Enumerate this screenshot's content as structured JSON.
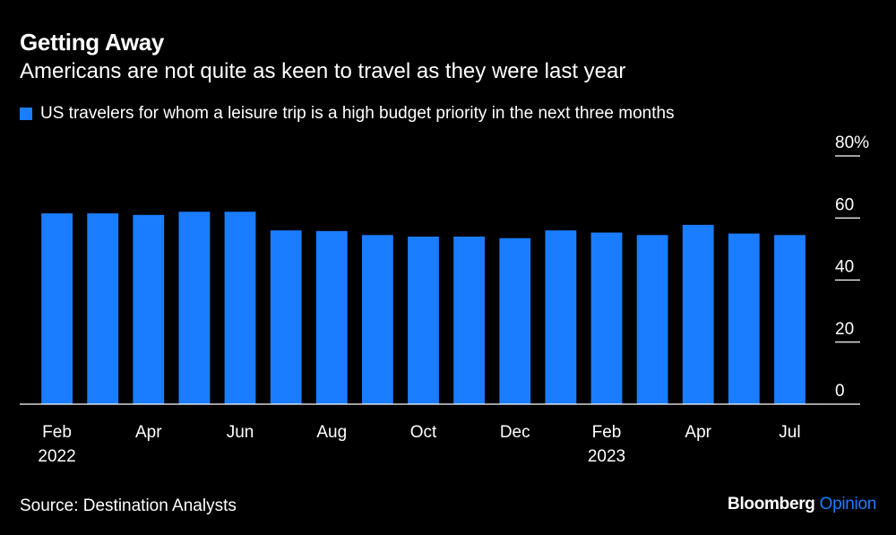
{
  "header": {
    "title": "Getting Away",
    "subtitle": "Americans are not quite as keen to travel as they were last year"
  },
  "legend": {
    "label": "US travelers for whom a leisure trip is a high budget priority in the next three months"
  },
  "footer": {
    "source": "Source: Destination Analysts",
    "brand_main": "Bloomberg",
    "brand_accent": "Opinion"
  },
  "colors": {
    "bar": "#1a7dff",
    "background": "#000000",
    "text": "#ffffff",
    "brand_accent": "#1a7dff"
  },
  "chart_data": {
    "type": "bar",
    "title": "Getting Away",
    "subtitle": "Americans are not quite as keen to travel as they were last year",
    "categories": [
      "Feb 2022",
      "Mar 2022",
      "Apr 2022",
      "May 2022",
      "Jun 2022",
      "Jul 2022",
      "Aug 2022",
      "Sep 2022",
      "Oct 2022",
      "Nov 2022",
      "Dec 2022",
      "Jan 2023",
      "Feb 2023",
      "Mar 2023",
      "Apr 2023",
      "May 2023",
      "Jul 2023"
    ],
    "series": [
      {
        "name": "US travelers for whom a leisure trip is a high budget priority in the next three months",
        "values": [
          61.5,
          61.5,
          61,
          62,
          62,
          56,
          55.8,
          54.5,
          54,
          54,
          53.5,
          56,
          55.3,
          54.5,
          57.8,
          55,
          54.5
        ]
      }
    ],
    "ylim": [
      0,
      80
    ],
    "yticks": [
      0,
      20,
      40,
      60,
      80
    ],
    "ytick_labels": [
      "0",
      "20",
      "40",
      "60",
      "80%"
    ],
    "xtick_labels": [
      {
        "index": 0,
        "line1": "Feb",
        "line2": "2022"
      },
      {
        "index": 2,
        "line1": "Apr",
        "line2": ""
      },
      {
        "index": 4,
        "line1": "Jun",
        "line2": ""
      },
      {
        "index": 6,
        "line1": "Aug",
        "line2": ""
      },
      {
        "index": 8,
        "line1": "Oct",
        "line2": ""
      },
      {
        "index": 10,
        "line1": "Dec",
        "line2": ""
      },
      {
        "index": 12,
        "line1": "Feb",
        "line2": "2023"
      },
      {
        "index": 14,
        "line1": "Apr",
        "line2": ""
      },
      {
        "index": 16,
        "line1": "Jul",
        "line2": ""
      }
    ],
    "y_axis_position": "right",
    "grid": false,
    "legend_position": "top-left"
  }
}
